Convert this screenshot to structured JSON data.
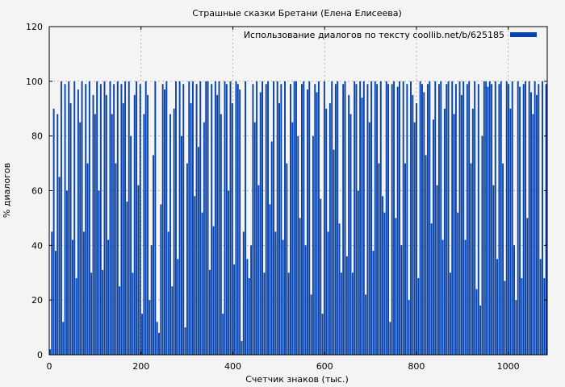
{
  "chart_data": {
    "type": "bar",
    "title": "Страшные сказки Бретани (Елена Елисеева)",
    "xlabel": "Счетчик знаков (тыс.)",
    "ylabel": "% диалогов",
    "xlim": [
      0,
      1085
    ],
    "ylim": [
      0,
      120
    ],
    "xticks": [
      0,
      200,
      400,
      600,
      800,
      1000
    ],
    "yticks": [
      0,
      20,
      40,
      60,
      80,
      100,
      120
    ],
    "grid": true,
    "legend_position": "top-right",
    "bar_color": "#0a44aa",
    "series": [
      {
        "name": "Использование диалогов по тексту coollib.net/b/625185",
        "values": [
          2,
          45,
          90,
          38,
          88,
          65,
          100,
          12,
          99,
          60,
          100,
          92,
          42,
          100,
          28,
          97,
          85,
          100,
          45,
          99,
          70,
          100,
          30,
          95,
          88,
          100,
          60,
          99,
          31,
          100,
          95,
          42,
          100,
          88,
          99,
          70,
          100,
          25,
          99,
          92,
          100,
          56,
          100,
          80,
          30,
          95,
          100,
          62,
          99,
          15,
          88,
          100,
          95,
          20,
          40,
          73,
          100,
          12,
          8,
          55,
          99,
          97,
          100,
          45,
          88,
          25,
          90,
          100,
          35,
          100,
          80,
          99,
          10,
          70,
          100,
          92,
          100,
          58,
          99,
          76,
          100,
          52,
          85,
          100,
          100,
          31,
          99,
          47,
          100,
          95,
          100,
          88,
          15,
          100,
          99,
          60,
          100,
          92,
          33,
          100,
          99,
          97,
          5,
          45,
          100,
          35,
          28,
          40,
          99,
          85,
          100,
          62,
          96,
          100,
          30,
          99,
          100,
          55,
          78,
          100,
          45,
          100,
          92,
          99,
          42,
          100,
          70,
          30,
          99,
          85,
          100,
          100,
          80,
          50,
          99,
          100,
          40,
          97,
          100,
          22,
          80,
          99,
          96,
          100,
          57,
          15,
          100,
          90,
          45,
          92,
          100,
          75,
          99,
          100,
          48,
          30,
          99,
          100,
          36,
          95,
          88,
          30,
          100,
          99,
          60,
          100,
          94,
          100,
          22,
          99,
          85,
          100,
          38,
          100,
          99,
          70,
          100,
          58,
          52,
          100,
          99,
          12,
          99,
          100,
          50,
          98,
          100,
          40,
          100,
          70,
          99,
          20,
          100,
          95,
          85,
          92,
          28,
          100,
          99,
          96,
          73,
          99,
          100,
          48,
          86,
          100,
          62,
          99,
          100,
          42,
          90,
          99,
          100,
          30,
          100,
          88,
          99,
          52,
          100,
          95,
          100,
          42,
          99,
          100,
          70,
          90,
          100,
          24,
          99,
          18,
          80,
          100,
          100,
          98,
          100,
          99,
          62,
          100,
          35,
          99,
          100,
          70,
          27,
          100,
          99,
          90,
          100,
          40,
          20,
          100,
          98,
          28,
          99,
          100,
          50,
          100,
          96,
          88,
          100,
          95,
          99,
          35,
          100,
          28,
          99
        ]
      }
    ]
  }
}
